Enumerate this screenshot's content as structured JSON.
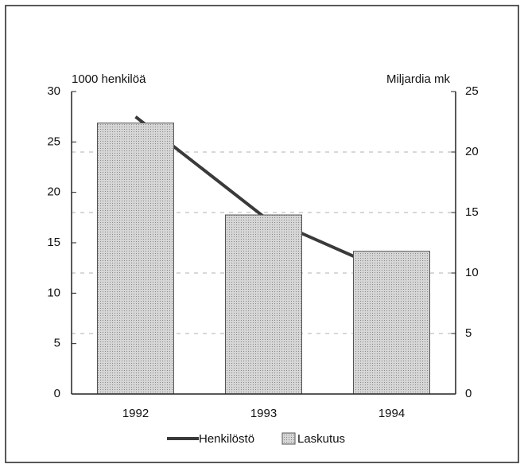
{
  "chart_data": {
    "type": "bar_line",
    "ylabel": "1000 henkilöä",
    "y2label": "Miljardia mk",
    "categories": [
      "1992",
      "1993",
      "1994"
    ],
    "series": [
      {
        "name": "Henkilöstö",
        "type": "line",
        "color": "#3a3a3a",
        "axis": "y",
        "values": [
          27.5,
          17.6,
          12.0
        ]
      },
      {
        "name": "Laskutus",
        "type": "bar",
        "color": "#c9c9c9",
        "axis": "y2",
        "values": [
          22.4,
          14.8,
          11.8
        ]
      }
    ],
    "ylim": [
      0,
      30
    ],
    "yticks": [
      0,
      5,
      10,
      15,
      20,
      25,
      30
    ],
    "y2lim": [
      0,
      25
    ],
    "y2ticks": [
      0,
      5,
      10,
      15,
      20,
      25
    ],
    "grid": true
  }
}
